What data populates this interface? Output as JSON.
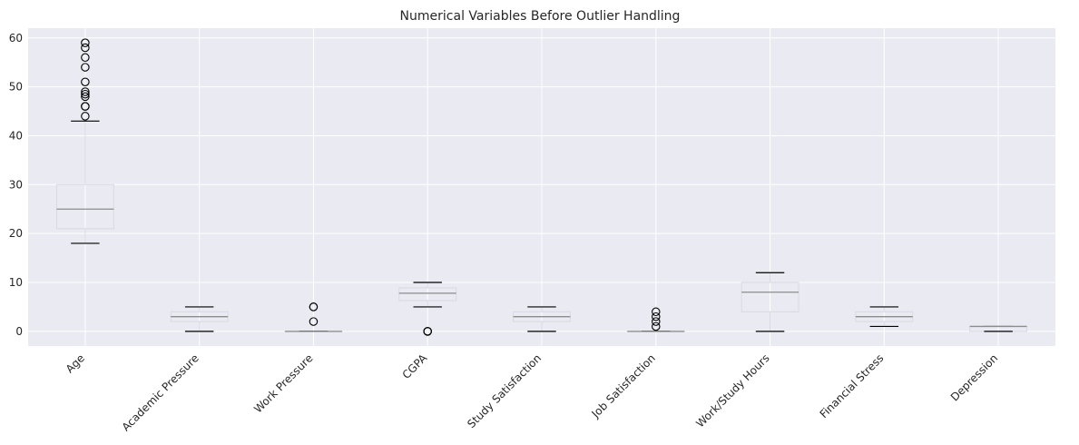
{
  "chart_data": {
    "type": "boxplot",
    "title": "Numerical Variables Before Outlier Handling",
    "xlabel": "",
    "ylabel": "",
    "ylim": [
      -3,
      62
    ],
    "yticks": [
      0,
      10,
      20,
      30,
      40,
      50,
      60
    ],
    "grid": true,
    "xtick_rotation": 45,
    "colors": {
      "background": "#EAEAF2",
      "grid": "#FFFFFF",
      "box": "#D9D9E3",
      "median": "#8C8C8C",
      "whisker": "#000000",
      "flier": "#000000"
    },
    "categories": [
      "Age",
      "Academic Pressure",
      "Work Pressure",
      "CGPA",
      "Study Satisfaction",
      "Job Satisfaction",
      "Work/Study Hours",
      "Financial Stress",
      "Depression"
    ],
    "boxes": [
      {
        "name": "Age",
        "whislo": 18,
        "q1": 21,
        "med": 25,
        "q3": 30,
        "whishi": 43,
        "fliers": [
          44,
          46,
          46,
          48,
          48.5,
          49,
          51,
          54,
          56,
          58,
          59
        ]
      },
      {
        "name": "Academic Pressure",
        "whislo": 0,
        "q1": 2,
        "med": 3,
        "q3": 4,
        "whishi": 5,
        "fliers": []
      },
      {
        "name": "Work Pressure",
        "whislo": 0,
        "q1": 0,
        "med": 0,
        "q3": 0,
        "whishi": 0,
        "fliers": [
          2,
          5,
          5
        ]
      },
      {
        "name": "CGPA",
        "whislo": 5,
        "q1": 6.3,
        "med": 7.8,
        "q3": 8.9,
        "whishi": 10,
        "fliers": [
          0,
          0,
          0
        ]
      },
      {
        "name": "Study Satisfaction",
        "whislo": 0,
        "q1": 2,
        "med": 3,
        "q3": 4,
        "whishi": 5,
        "fliers": []
      },
      {
        "name": "Job Satisfaction",
        "whislo": 0,
        "q1": 0,
        "med": 0,
        "q3": 0,
        "whishi": 0,
        "fliers": [
          1,
          2,
          3,
          4
        ]
      },
      {
        "name": "Work/Study Hours",
        "whislo": 0,
        "q1": 4,
        "med": 8,
        "q3": 10,
        "whishi": 12,
        "fliers": []
      },
      {
        "name": "Financial Stress",
        "whislo": 1,
        "q1": 2,
        "med": 3,
        "q3": 4,
        "whishi": 5,
        "fliers": []
      },
      {
        "name": "Depression",
        "whislo": 0,
        "q1": 0,
        "med": 1,
        "q3": 1,
        "whishi": 1,
        "fliers": []
      }
    ]
  }
}
